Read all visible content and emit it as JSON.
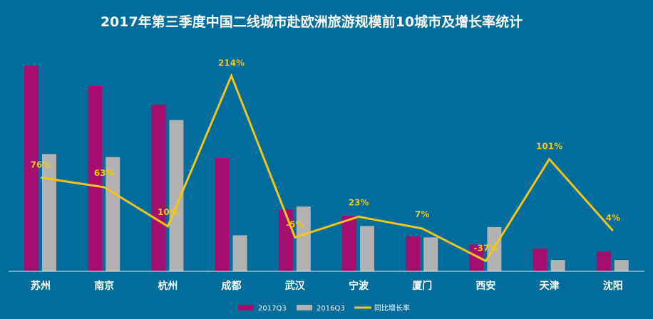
{
  "chart_data": {
    "type": "bar+line",
    "title": "2017年第三季度中国二线城市赴欧洲旅游规模前10城市及增长率统计",
    "categories": [
      "苏州",
      "南京",
      "杭州",
      "成都",
      "武汉",
      "宁波",
      "厦门",
      "西安",
      "天津",
      "沈阳"
    ],
    "series": [
      {
        "name": "2017Q3",
        "kind": "bar",
        "color": "#a50e6e",
        "values": [
          100,
          90,
          81,
          55,
          30,
          27,
          17,
          13,
          11,
          9.5
        ]
      },
      {
        "name": "2016Q3",
        "kind": "bar",
        "color": "#b2b2b2",
        "values": [
          57,
          55.5,
          73.5,
          17.5,
          31.5,
          22,
          16.5,
          21.5,
          5.5,
          5.5
        ]
      },
      {
        "name": "同比增长率",
        "kind": "line",
        "color": "#f5c518",
        "values": [
          76,
          63,
          10,
          214,
          -5,
          23,
          7,
          -37,
          101,
          4
        ],
        "labels": [
          "76%",
          "63%",
          "10%",
          "214%",
          "-5%",
          "23%",
          "7%",
          "-37%",
          "101%",
          "4%"
        ]
      }
    ],
    "bar_axis": {
      "ylim": [
        0,
        100
      ]
    },
    "line_axis": {
      "ylim": [
        -50,
        225
      ]
    },
    "grid": false,
    "legend": {
      "position": "bottom-right"
    }
  }
}
